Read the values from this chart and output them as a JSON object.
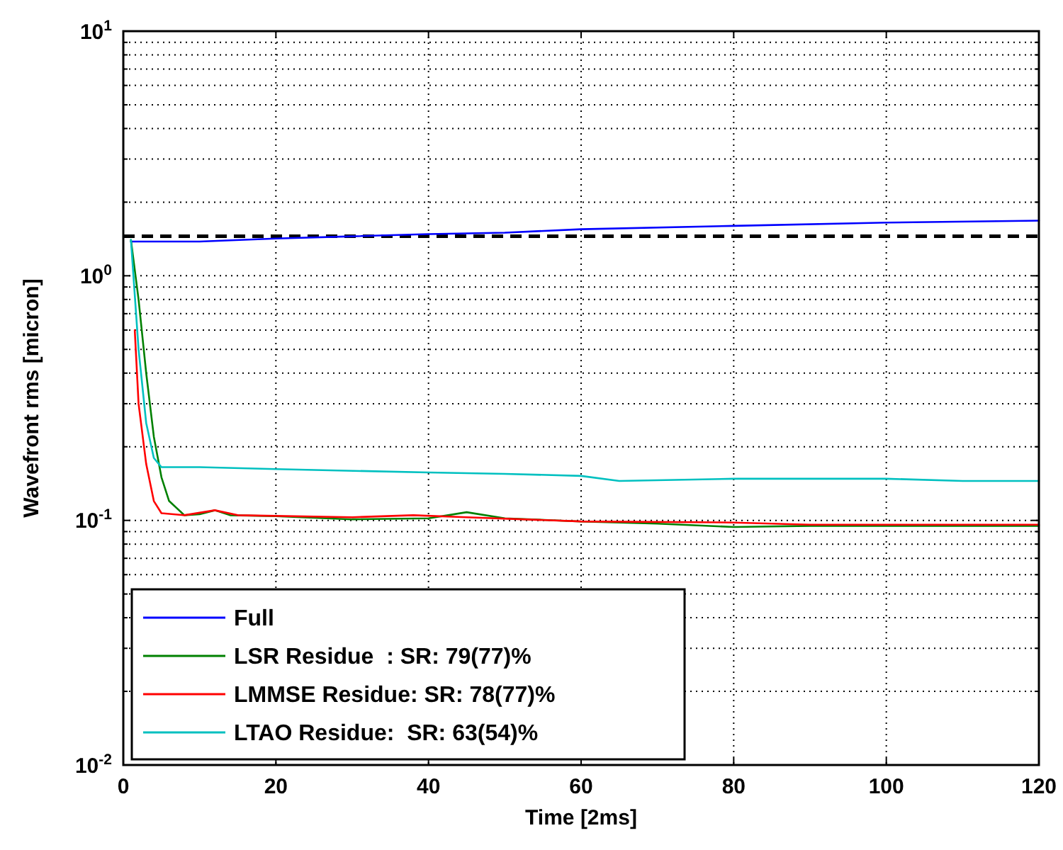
{
  "chart_data": {
    "type": "line",
    "xlabel": "Time [2ms]",
    "ylabel": "Wavefront rms [micron]",
    "log": "y",
    "grid": true,
    "legend": "bottom left",
    "line_style": "solid",
    "xlim": [
      0,
      120
    ],
    "xticks": [
      0,
      20,
      40,
      60,
      80,
      100,
      120
    ],
    "ylim": [
      0.01,
      10
    ],
    "yticks": [
      {
        "value": 0.01,
        "label": "10$^{-2}$"
      },
      {
        "value": 0.02,
        "label": null
      },
      {
        "value": 0.03,
        "label": null
      },
      {
        "value": 0.04,
        "label": null
      },
      {
        "value": 0.05,
        "label": null
      },
      {
        "value": 0.06,
        "label": null
      },
      {
        "value": 0.07,
        "label": null
      },
      {
        "value": 0.08,
        "label": null
      },
      {
        "value": 0.09,
        "label": null
      },
      {
        "value": 0.1,
        "label": "10$^{-1}$"
      },
      {
        "value": 0.2,
        "label": null
      },
      {
        "value": 0.3,
        "label": null
      },
      {
        "value": 0.4,
        "label": null
      },
      {
        "value": 0.5,
        "label": null
      },
      {
        "value": 0.6,
        "label": null
      },
      {
        "value": 0.7,
        "label": null
      },
      {
        "value": 0.8,
        "label": null
      },
      {
        "value": 0.9,
        "label": null
      },
      {
        "value": 1,
        "label": "10$^{0}$"
      },
      {
        "value": 2,
        "label": null
      },
      {
        "value": 3,
        "label": null
      },
      {
        "value": 4,
        "label": null
      },
      {
        "value": 5,
        "label": null
      },
      {
        "value": 6,
        "label": null
      },
      {
        "value": 7,
        "label": null
      },
      {
        "value": 8,
        "label": null
      },
      {
        "value": 9,
        "label": null
      },
      {
        "value": 10,
        "label": "10$^{1}$"
      }
    ],
    "ref_lines": [
      {
        "axis": "y",
        "value": 1.45,
        "color": "#000000",
        "line_style": "dashed"
      }
    ],
    "series": [
      {
        "name": "Full",
        "color": "#0000ff",
        "x": [
          1,
          10,
          20,
          30,
          40,
          50,
          60,
          80,
          100,
          120
        ],
        "values": [
          1.38,
          1.38,
          1.42,
          1.45,
          1.48,
          1.5,
          1.55,
          1.6,
          1.65,
          1.68
        ]
      },
      {
        "name": "LSR Residue  : SR: 79(77)%",
        "color": "#008000",
        "x": [
          1,
          2,
          3,
          4,
          5,
          6,
          8,
          10,
          12,
          14,
          20,
          30,
          40,
          45,
          50,
          60,
          70,
          80,
          90,
          100,
          110,
          120
        ],
        "values": [
          1.4,
          0.8,
          0.4,
          0.22,
          0.15,
          0.12,
          0.105,
          0.106,
          0.11,
          0.105,
          0.104,
          0.101,
          0.102,
          0.108,
          0.102,
          0.099,
          0.097,
          0.094,
          0.095,
          0.095,
          0.095,
          0.095
        ]
      },
      {
        "name": "LMMSE Residue: SR: 78(77)%",
        "color": "#ff0000",
        "x": [
          1.5,
          2,
          3,
          4,
          5,
          8,
          12,
          15,
          30,
          38,
          45,
          60,
          80,
          90,
          100,
          120
        ],
        "values": [
          0.6,
          0.3,
          0.17,
          0.12,
          0.107,
          0.105,
          0.11,
          0.105,
          0.103,
          0.105,
          0.103,
          0.099,
          0.098,
          0.096,
          0.096,
          0.096
        ]
      },
      {
        "name": "LTAO Residue:  SR: 63(54)%",
        "color": "#00c0c0",
        "x": [
          1,
          2,
          3,
          4,
          5,
          10,
          20,
          40,
          50,
          60,
          65,
          80,
          100,
          110,
          120
        ],
        "values": [
          1.4,
          0.5,
          0.25,
          0.18,
          0.165,
          0.165,
          0.162,
          0.157,
          0.155,
          0.152,
          0.145,
          0.148,
          0.148,
          0.145,
          0.145
        ]
      }
    ]
  }
}
